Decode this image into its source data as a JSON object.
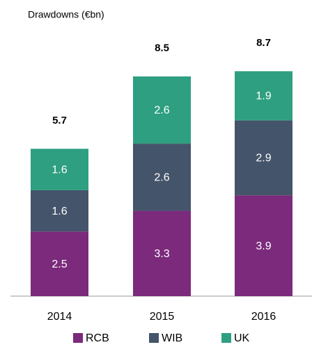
{
  "chart_data": {
    "type": "stacked_bar",
    "title": "Drawdowns (€bn)",
    "categories": [
      "2014",
      "2015",
      "2016"
    ],
    "series": [
      {
        "name": "RCB",
        "color": "#7b2a7c",
        "values": [
          2.5,
          3.3,
          3.9
        ]
      },
      {
        "name": "WIB",
        "color": "#44546a",
        "values": [
          1.6,
          2.6,
          2.9
        ]
      },
      {
        "name": "UK",
        "color": "#2e9f80",
        "values": [
          1.6,
          2.6,
          1.9
        ]
      }
    ],
    "totals": [
      5.7,
      8.5,
      8.7
    ],
    "legend": "bottom"
  }
}
